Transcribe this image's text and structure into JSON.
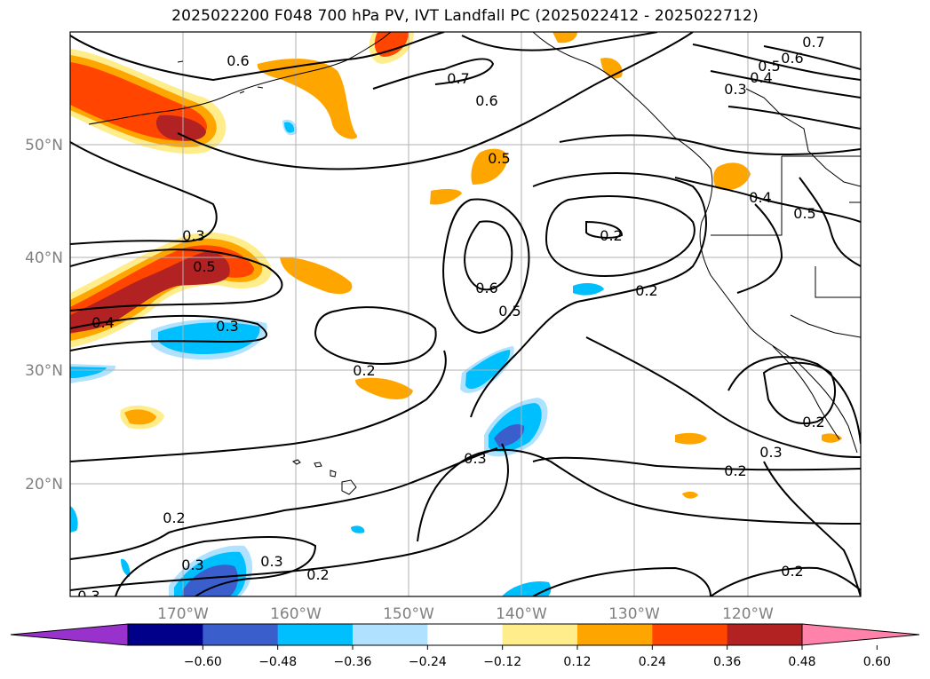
{
  "title": "2025022200 F048 700 hPa PV, IVT Landfall PC (2025022412 - 2025022712)",
  "map": {
    "lat_labels": [
      "50°N",
      "40°N",
      "30°N",
      "20°N"
    ],
    "lon_labels": [
      "170°W",
      "160°W",
      "150°W",
      "140°W",
      "130°W",
      "120°W"
    ]
  },
  "contour_labels": {
    "c1": "0.6",
    "c2": "0.7",
    "c3": "0.6",
    "c4": "0.7",
    "c5": "0.6",
    "c6": "0.5",
    "c7": "0.4",
    "c8": "0.3",
    "c9": "0.5",
    "c10": "0.4",
    "c11": "0.5",
    "c12": "0.2",
    "c13": "0.3",
    "c14": "0.5",
    "c15": "0.4",
    "c16": "0.3",
    "c17": "0.6",
    "c18": "0.5",
    "c19": "0.2",
    "c20": "0.2",
    "c21": "0.3",
    "c22": "0.2",
    "c23": "0.3",
    "c24": "0.2",
    "c25": "0.2",
    "c26": "0.3",
    "c27": "0.3",
    "c28": "0.2",
    "c29": "0.2",
    "c30": "0.3"
  },
  "colorbar": {
    "colors": [
      "#9932cc",
      "#00008b",
      "#3a5fcd",
      "#00bfff",
      "#b0e2ff",
      "#ffffff",
      "#ffec8b",
      "#ffa500",
      "#ff4500",
      "#b22222",
      "#ff82ab"
    ],
    "ticks": [
      "−0.60",
      "−0.48",
      "−0.36",
      "−0.24",
      "−0.12",
      "0.12",
      "0.24",
      "0.36",
      "0.48",
      "0.60"
    ]
  }
}
